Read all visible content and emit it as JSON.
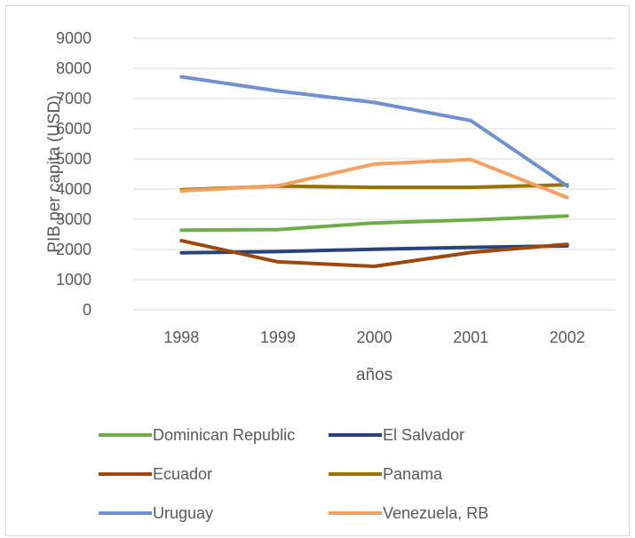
{
  "chart_data": {
    "type": "line",
    "title": "",
    "xlabel": "años",
    "ylabel": "PIB per capita (USD)",
    "x": [
      "1998",
      "1999",
      "2000",
      "2001",
      "2002"
    ],
    "ylim": [
      0,
      9000
    ],
    "yticks": [
      "0",
      "1000",
      "2000",
      "3000",
      "4000",
      "5000",
      "6000",
      "7000",
      "8000",
      "9000"
    ],
    "grid": true,
    "legend_position": "bottom",
    "series": [
      {
        "name": "Dominican Republic",
        "color": "#70ad47",
        "values": [
          2640,
          2660,
          2880,
          2980,
          3110
        ]
      },
      {
        "name": "El Salvador",
        "color": "#264478",
        "values": [
          1890,
          1930,
          2010,
          2070,
          2120
        ]
      },
      {
        "name": "Ecuador",
        "color": "#9e480e",
        "values": [
          2290,
          1590,
          1440,
          1900,
          2170
        ]
      },
      {
        "name": "Panama",
        "color": "#997300",
        "values": [
          3980,
          4100,
          4060,
          4060,
          4140
        ]
      },
      {
        "name": "Uruguay",
        "color": "#6f91d2",
        "values": [
          7720,
          7250,
          6870,
          6270,
          4100
        ]
      },
      {
        "name": "Venezuela, RB",
        "color": "#f4a160",
        "values": [
          3940,
          4110,
          4830,
          4980,
          3720
        ]
      }
    ]
  }
}
